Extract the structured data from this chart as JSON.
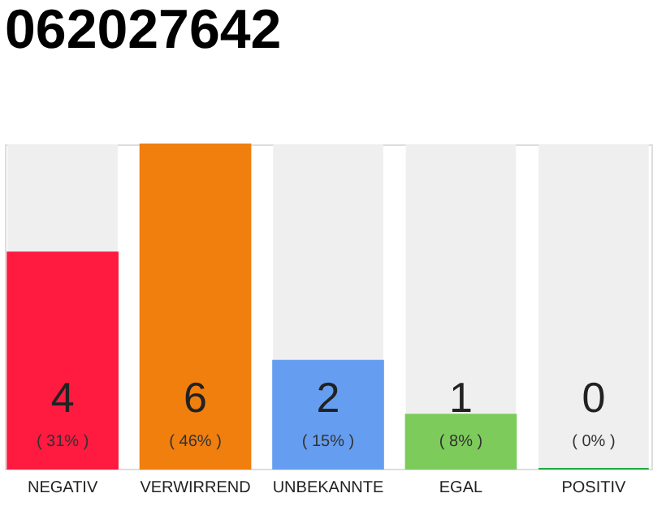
{
  "chart_data": {
    "type": "bar",
    "title": "062027642",
    "categories": [
      "NEGATIV",
      "VERWIRREND",
      "UNBEKANNTE",
      "EGAL",
      "POSITIV"
    ],
    "values": [
      4,
      6,
      2,
      1,
      0
    ],
    "colors": [
      "#ff1a40",
      "#f07f0e",
      "#659ef0",
      "#7dcb5b",
      "#22aa44"
    ],
    "data_labels": true,
    "annotations": [
      "( 31% )",
      "( 46% )",
      "( 15% )",
      "( 8% )",
      "( 0% )"
    ],
    "grid": false
  }
}
